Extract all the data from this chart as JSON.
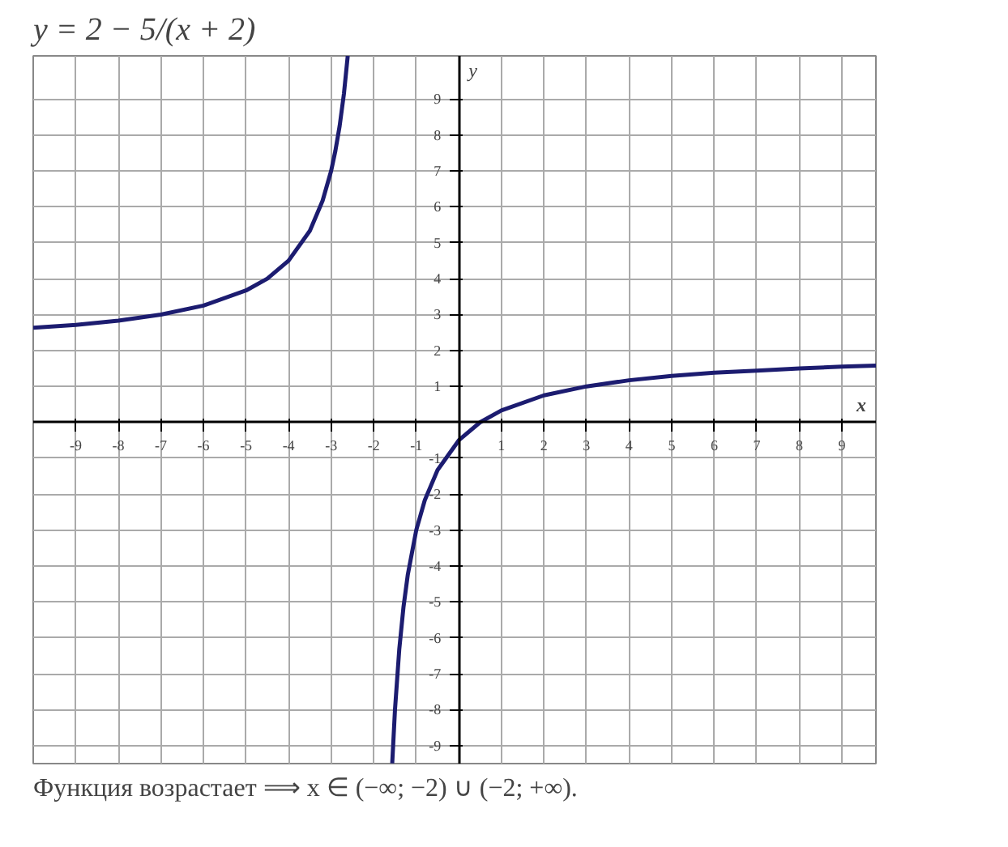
{
  "chart_data": {
    "type": "line",
    "title": "y = 2 − 5/(x + 2)",
    "xlabel": "x",
    "ylabel": "y",
    "annotations": [
      "Функция возрастает ⟹ x ∈ (−∞; −2) ∪ (−2; +∞)."
    ],
    "xlim": [
      -10,
      9.8
    ],
    "ylim": [
      -9.5,
      10.2
    ],
    "xticks": [
      -9,
      -8,
      -7,
      -6,
      -5,
      -4,
      -3,
      -2,
      -1,
      1,
      2,
      3,
      4,
      5,
      6,
      7,
      8,
      9
    ],
    "yticks": [
      -9,
      -8,
      -7,
      -6,
      -5,
      -4,
      -3,
      -2,
      -1,
      1,
      2,
      3,
      4,
      5,
      6,
      7,
      8,
      9
    ],
    "grid": true,
    "marker": "none",
    "line_style": "solid",
    "series": [
      {
        "color": "#1c1c70",
        "x": [
          -10,
          -9,
          -8,
          -7,
          -6,
          -5,
          -4.5,
          -4,
          -3.5,
          -3.2,
          -3,
          -2.9,
          -2.8,
          -2.7,
          -2.61
        ],
        "values": [
          2.63,
          2.71,
          2.83,
          3,
          3.25,
          3.67,
          4,
          4.5,
          5.33,
          6.17,
          7,
          7.56,
          8.25,
          9.14,
          10.2
        ]
      },
      {
        "color": "#1c1c70",
        "x": [
          -1.565,
          -1.5,
          -1.4,
          -1.3,
          -1.2,
          -1,
          -0.8,
          -0.5,
          0,
          0.5,
          1,
          2,
          3,
          4,
          5,
          6,
          7,
          8,
          9,
          9.8
        ],
        "values": [
          -9.49,
          -8,
          -6.33,
          -5.14,
          -4.25,
          -3,
          -2.17,
          -1.33,
          -0.5,
          0,
          0.33,
          0.75,
          1,
          1.17,
          1.29,
          1.38,
          1.44,
          1.5,
          1.55,
          1.58
        ]
      }
    ]
  }
}
